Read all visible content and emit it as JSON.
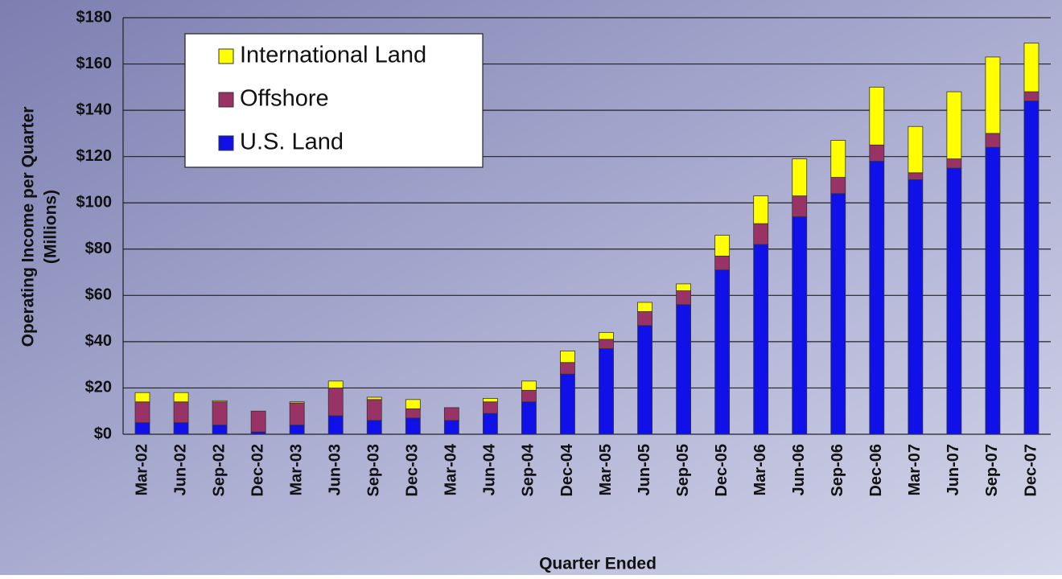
{
  "chart_data": {
    "type": "stacked-bar",
    "ylabel": [
      "Operating Income per Quarter",
      "(Millions)"
    ],
    "xlabel": "Quarter Ended",
    "categories": [
      "Mar-02",
      "Jun-02",
      "Sep-02",
      "Dec-02",
      "Mar-03",
      "Jun-03",
      "Sep-03",
      "Dec-03",
      "Mar-04",
      "Jun-04",
      "Sep-04",
      "Dec-04",
      "Mar-05",
      "Jun-05",
      "Sep-05",
      "Dec-05",
      "Mar-06",
      "Jun-06",
      "Sep-06",
      "Dec-06",
      "Mar-07",
      "Jun-07",
      "Sep-07",
      "Dec-07"
    ],
    "series": [
      {
        "name": "U.S. Land",
        "color": "#1010e8",
        "values": [
          5,
          5,
          4,
          1,
          4,
          8,
          6,
          7,
          6,
          9,
          14,
          26,
          37,
          47,
          56,
          71,
          82,
          94,
          104,
          118,
          110,
          115,
          124,
          144
        ]
      },
      {
        "name": "Offshore",
        "color": "#993366",
        "values": [
          9,
          9,
          10,
          9,
          9.5,
          12,
          9,
          4,
          5.5,
          5,
          5,
          5,
          4,
          6,
          6,
          6,
          9,
          9,
          7,
          7,
          3,
          4,
          6,
          4
        ]
      },
      {
        "name": "International Land",
        "color": "#ffff00",
        "values": [
          4,
          4,
          0.5,
          0,
          0.5,
          3,
          1,
          4,
          0,
          1.5,
          4,
          5,
          3,
          4,
          3,
          9,
          12,
          16,
          16,
          25,
          20,
          29,
          33,
          21
        ]
      }
    ],
    "legend_order": [
      2,
      1,
      0
    ],
    "ylim": [
      0,
      180
    ],
    "yticks": [
      {
        "value": 0,
        "label": "$0"
      },
      {
        "value": 20,
        "label": "$20"
      },
      {
        "value": 40,
        "label": "$40"
      },
      {
        "value": 60,
        "label": "$60"
      },
      {
        "value": 80,
        "label": "$80"
      },
      {
        "value": 100,
        "label": "$100"
      },
      {
        "value": 120,
        "label": "$120"
      },
      {
        "value": 140,
        "label": "$140"
      },
      {
        "value": 160,
        "label": "$160"
      },
      {
        "value": 180,
        "label": "$180"
      }
    ],
    "grid": true
  }
}
